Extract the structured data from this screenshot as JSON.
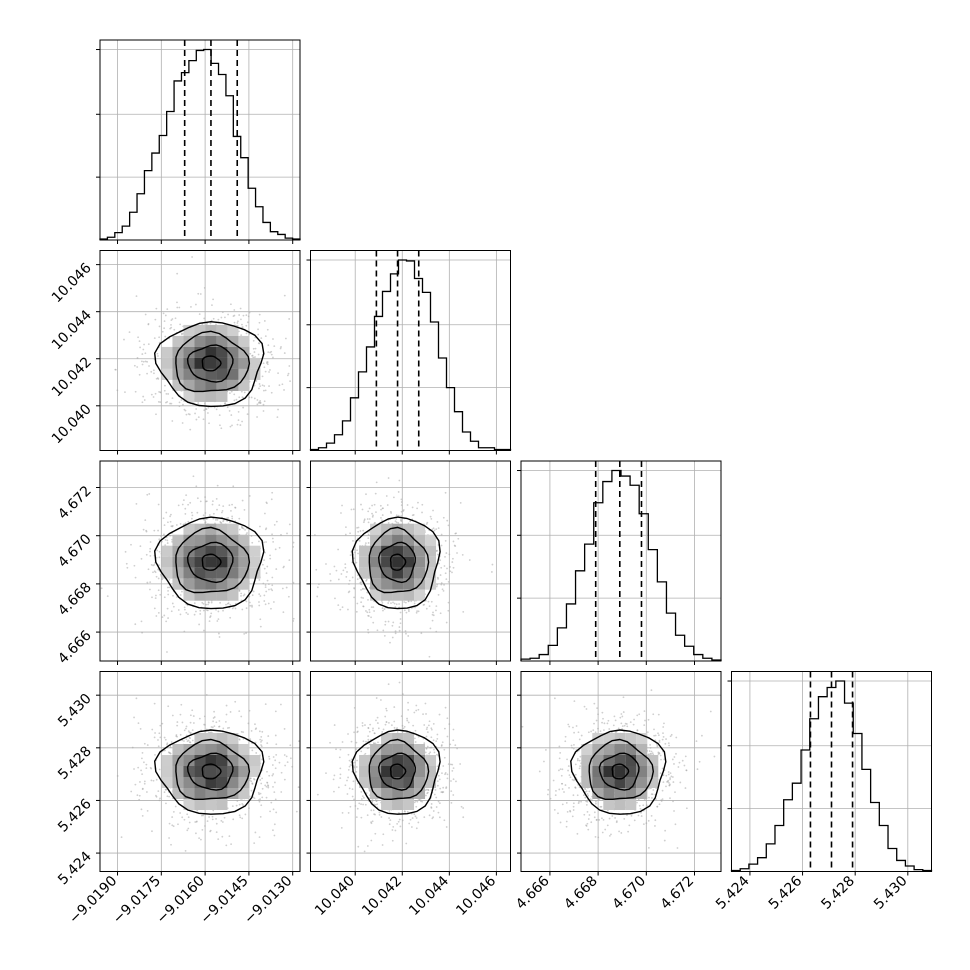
{
  "chart_data": {
    "type": "corner",
    "parameters": [
      {
        "ticks": [
          -9.019,
          -9.0175,
          -9.016,
          -9.0145,
          -9.013
        ],
        "tick_labels": [
          "−9.0190",
          "−9.0175",
          "−9.0160",
          "−9.0145",
          "−9.0130"
        ],
        "range": [
          -9.0196,
          -9.01275
        ],
        "quantiles": [
          -9.0167,
          -9.0158,
          -9.0149
        ]
      },
      {
        "ticks": [
          10.04,
          10.042,
          10.044,
          10.046
        ],
        "tick_labels": [
          "10.040",
          "10.042",
          "10.044",
          "10.046"
        ],
        "range": [
          10.0381,
          10.0466
        ],
        "quantiles": [
          10.0409,
          10.0418,
          10.0427
        ]
      },
      {
        "ticks": [
          4.666,
          4.668,
          4.67,
          4.672
        ],
        "tick_labels": [
          "4.666",
          "4.668",
          "4.670",
          "4.672"
        ],
        "range": [
          4.6648,
          4.6731
        ],
        "quantiles": [
          4.6679,
          4.6689,
          4.6698
        ]
      },
      {
        "ticks": [
          5.424,
          5.426,
          5.428,
          5.43
        ],
        "tick_labels": [
          "5.424",
          "5.426",
          "5.428",
          "5.430"
        ],
        "range": [
          5.4233,
          5.4309
        ],
        "quantiles": [
          5.4263,
          5.4271,
          5.4279
        ]
      }
    ],
    "histograms": [
      [
        1,
        3,
        8,
        15,
        30,
        50,
        75,
        94,
        113,
        139,
        172,
        181,
        194,
        205,
        206,
        191,
        179,
        156,
        112,
        89,
        56,
        36,
        19,
        9,
        6,
        2,
        1
      ],
      [
        1,
        3,
        8,
        17,
        32,
        57,
        85,
        112,
        145,
        172,
        191,
        206,
        205,
        186,
        171,
        139,
        100,
        68,
        42,
        20,
        10,
        3,
        3,
        1,
        1
      ],
      [
        2,
        3,
        7,
        17,
        36,
        62,
        98,
        127,
        172,
        195,
        207,
        201,
        191,
        160,
        121,
        86,
        52,
        28,
        16,
        7,
        3,
        1
      ],
      [
        1,
        3,
        8,
        15,
        30,
        50,
        78,
        96,
        132,
        166,
        190,
        200,
        207,
        183,
        150,
        111,
        75,
        50,
        25,
        12,
        6,
        2,
        1
      ]
    ],
    "grid": true,
    "quantile_lines": "dashed"
  }
}
